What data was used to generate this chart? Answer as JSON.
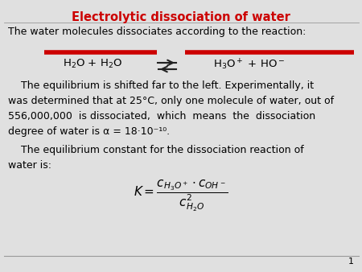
{
  "title": "Electrolytic dissociation of water",
  "title_color": "#cc0000",
  "bg_color": "#e0e0e0",
  "text_color": "#000000",
  "line1": "The water molecules dissociates according to the reaction:",
  "page_num": "1",
  "red_color": "#cc0000",
  "gray_line_color": "#999999",
  "arrow_color": "#222222",
  "body_fontsize": 9.0,
  "title_fontsize": 10.5
}
